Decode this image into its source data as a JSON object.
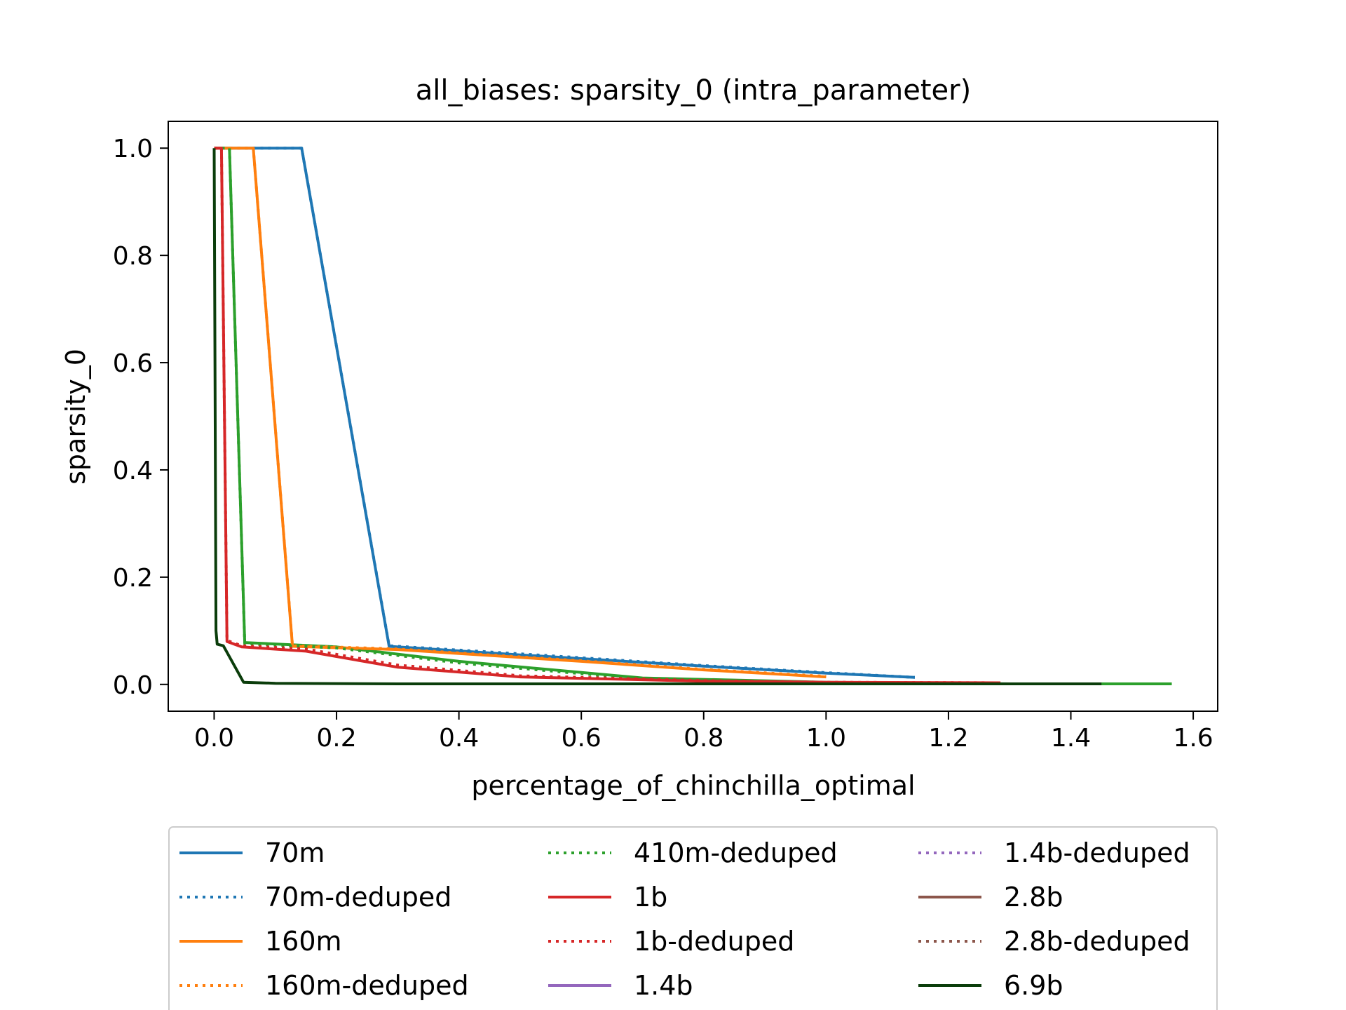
{
  "chart_data": {
    "type": "line",
    "title": "all_biases: sparsity_0 (intra_parameter)",
    "xlabel": "percentage_of_chinchilla_optimal",
    "ylabel": "sparsity_0",
    "xlim": [
      -0.075,
      1.64
    ],
    "ylim": [
      -0.05,
      1.05
    ],
    "xticks": [
      0.0,
      0.2,
      0.4,
      0.6,
      0.8,
      1.0,
      1.2,
      1.4,
      1.6
    ],
    "xtick_labels": [
      "0.0",
      "0.2",
      "0.4",
      "0.6",
      "0.8",
      "1.0",
      "1.2",
      "1.4",
      "1.6"
    ],
    "yticks": [
      0.0,
      0.2,
      0.4,
      0.6,
      0.8,
      1.0
    ],
    "ytick_labels": [
      "0.0",
      "0.2",
      "0.4",
      "0.6",
      "0.8",
      "1.0"
    ],
    "grid": false,
    "legend_position": "below",
    "series": [
      {
        "name": "70m",
        "color": "#1f77b4",
        "dash": "solid",
        "x": [
          0.0,
          0.143,
          0.286,
          0.5,
          0.8,
          1.0,
          1.145
        ],
        "y": [
          1.0,
          1.0,
          0.071,
          0.055,
          0.034,
          0.021,
          0.013
        ]
      },
      {
        "name": "70m-deduped",
        "color": "#1f77b4",
        "dash": "dotted",
        "x": [
          0.0,
          0.143,
          0.286,
          0.5,
          0.8,
          1.0,
          1.145
        ],
        "y": [
          1.0,
          1.0,
          0.072,
          0.057,
          0.035,
          0.022,
          0.013
        ]
      },
      {
        "name": "160m",
        "color": "#ff7f0e",
        "dash": "solid",
        "x": [
          0.0,
          0.064,
          0.128,
          0.3,
          0.6,
          0.8,
          1.0
        ],
        "y": [
          1.0,
          1.0,
          0.071,
          0.065,
          0.043,
          0.027,
          0.014
        ]
      },
      {
        "name": "160m-deduped",
        "color": "#ff7f0e",
        "dash": "dotted",
        "x": [
          0.0,
          0.064,
          0.128,
          0.3,
          0.6,
          0.8,
          1.0
        ],
        "y": [
          1.0,
          1.0,
          0.072,
          0.066,
          0.044,
          0.028,
          0.015
        ]
      },
      {
        "name": "410m-deduped",
        "color": "#2ca02c",
        "dash": "dotted",
        "x": [
          0.0,
          0.025,
          0.05,
          0.2,
          0.4,
          0.7,
          1.0,
          1.3,
          1.565
        ],
        "y": [
          1.0,
          1.0,
          0.076,
          0.068,
          0.04,
          0.01,
          0.003,
          0.001,
          0.001
        ]
      },
      {
        "name": "1b",
        "color": "#d62728",
        "dash": "solid",
        "x": [
          0.0,
          0.012,
          0.021,
          0.045,
          0.15,
          0.3,
          0.5,
          0.8,
          1.0,
          1.285
        ],
        "y": [
          1.0,
          1.0,
          0.08,
          0.07,
          0.062,
          0.032,
          0.014,
          0.006,
          0.004,
          0.003
        ]
      },
      {
        "name": "1b-deduped",
        "color": "#d62728",
        "dash": "dotted",
        "x": [
          0.0,
          0.012,
          0.021,
          0.045,
          0.15,
          0.3,
          0.5,
          0.8,
          1.0,
          1.285
        ],
        "y": [
          1.0,
          1.0,
          0.082,
          0.072,
          0.066,
          0.036,
          0.016,
          0.007,
          0.004,
          0.003
        ]
      },
      {
        "name": "1.4b",
        "color": "#9467bd",
        "dash": "solid",
        "x": [],
        "y": []
      },
      {
        "name": "1.4b-deduped",
        "color": "#9467bd",
        "dash": "dotted",
        "x": [],
        "y": []
      },
      {
        "name": "2.8b",
        "color": "#8c564b",
        "dash": "solid",
        "x": [],
        "y": []
      },
      {
        "name": "2.8b-deduped",
        "color": "#8c564b",
        "dash": "dotted",
        "x": [],
        "y": []
      },
      {
        "name": "6.9b",
        "color": "#0b3d0b",
        "dash": "solid",
        "x": [
          0.0,
          0.003,
          0.005,
          0.015,
          0.048,
          0.1,
          0.3,
          0.6,
          1.0,
          1.45
        ],
        "y": [
          1.0,
          0.1,
          0.075,
          0.072,
          0.004,
          0.002,
          0.001,
          0.001,
          0.001,
          0.001
        ]
      }
    ],
    "extra_lines": [
      {
        "color": "#2ca02c",
        "dash": "solid",
        "x": [
          0.0,
          0.025,
          0.05,
          0.2,
          0.4,
          0.7,
          1.0,
          1.3,
          1.565
        ],
        "y": [
          1.0,
          1.0,
          0.078,
          0.07,
          0.043,
          0.012,
          0.004,
          0.001,
          0.001
        ]
      }
    ]
  }
}
